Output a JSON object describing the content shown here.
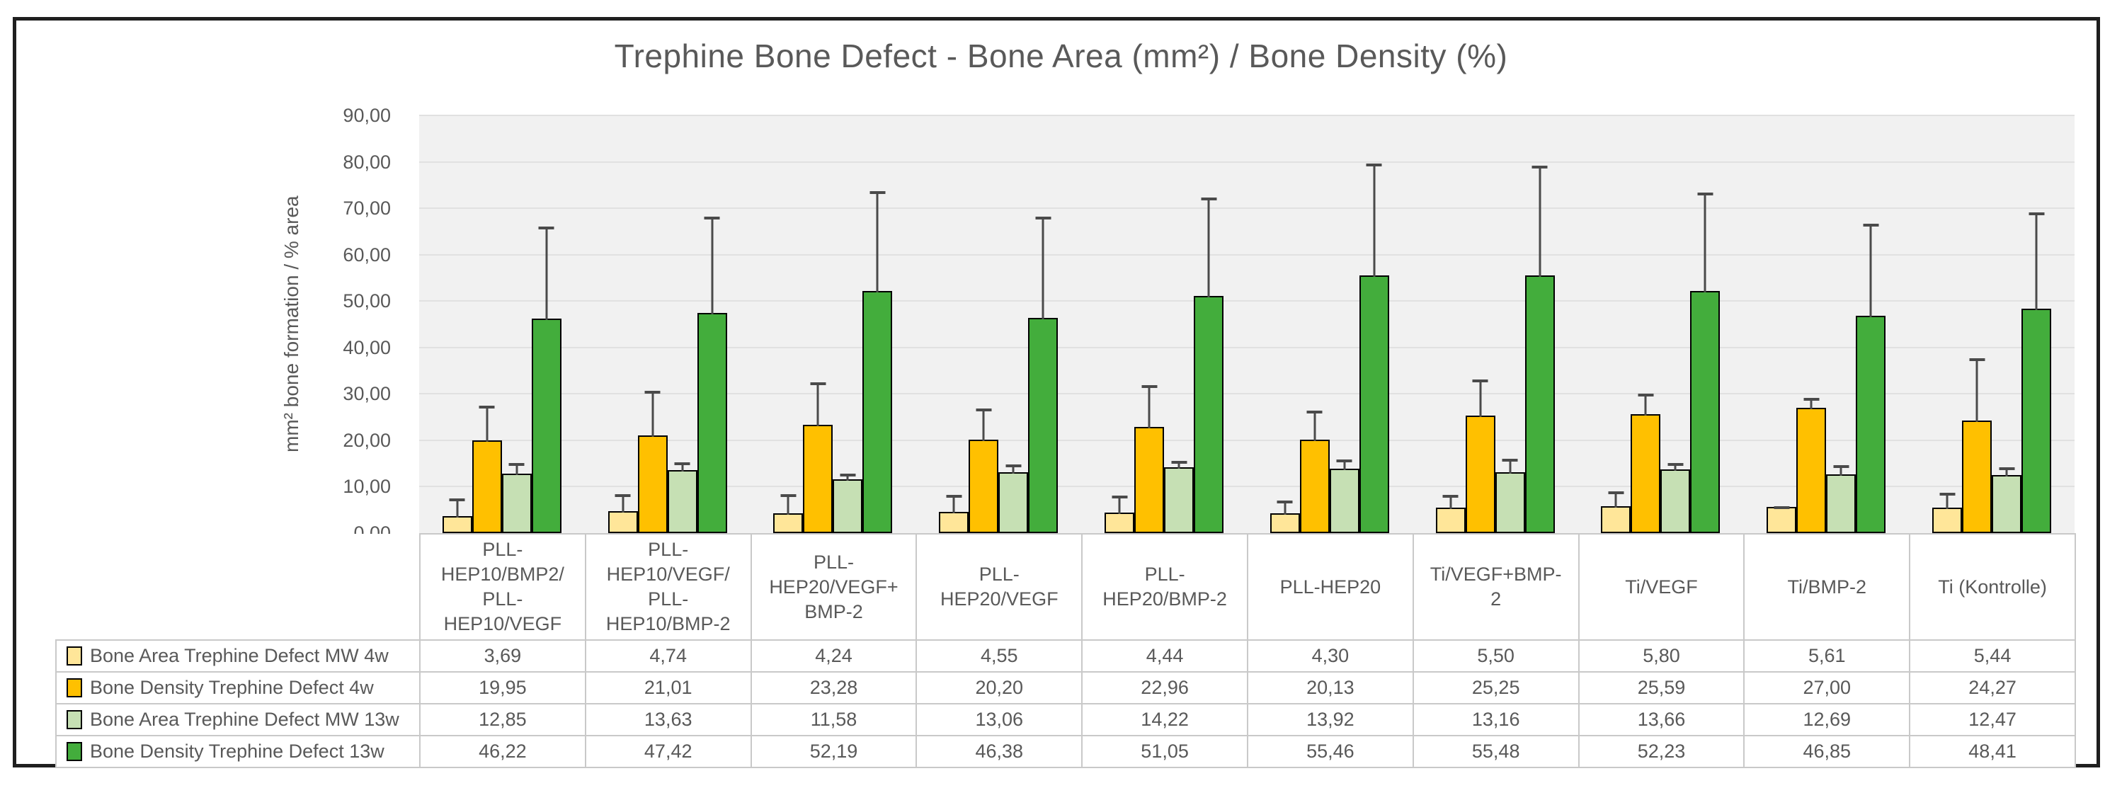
{
  "chart_data": {
    "type": "bar",
    "title": "Trephine Bone Defect - Bone Area (mm²) / Bone Density (%)",
    "ylabel": "mm² bone formation / % area",
    "ylim": [
      0,
      90
    ],
    "ytick_step": 10,
    "ytick_labels": [
      "0,00",
      "10,00",
      "20,00",
      "30,00",
      "40,00",
      "50,00",
      "60,00",
      "70,00",
      "80,00",
      "90,00"
    ],
    "grid": true,
    "legend_position": "table-left",
    "decimal_separator": ",",
    "categories": [
      "PLL-HEP10/BMP2/PLL-HEP10/VEGF",
      "PLL-HEP10/VEGF/PLL-HEP10/BMP-2",
      "PLL-HEP20/VEGF+BMP-2",
      "PLL-HEP20/VEGF",
      "PLL-HEP20/BMP-2",
      "PLL-HEP20",
      "Ti/VEGF+BMP-2",
      "Ti/VEGF",
      "Ti/BMP-2",
      "Ti (Kontrolle)"
    ],
    "series": [
      {
        "name": "Bone Area Trephine Defect MW 4w",
        "color": "#FFE699",
        "values": [
          3.69,
          4.74,
          4.24,
          4.55,
          4.44,
          4.3,
          5.5,
          5.8,
          5.61,
          5.44
        ],
        "labels": [
          "3,69",
          "4,74",
          "4,24",
          "4,55",
          "4,44",
          "4,30",
          "5,50",
          "5,80",
          "5,61",
          "5,44"
        ],
        "errors": [
          4.1,
          4.0,
          4.5,
          4.0,
          4.0,
          3.1,
          3.0,
          3.5,
          0.5,
          3.6
        ]
      },
      {
        "name": "Bone Density Trephine Defect 4w",
        "color": "#FFC000",
        "values": [
          19.95,
          21.01,
          23.28,
          20.2,
          22.96,
          20.13,
          25.25,
          25.59,
          27.0,
          24.27
        ],
        "labels": [
          "19,95",
          "21,01",
          "23,28",
          "20,20",
          "22,96",
          "20,13",
          "25,25",
          "25,59",
          "27,00",
          "24,27"
        ],
        "errors": [
          7.8,
          10.0,
          9.5,
          7.0,
          9.3,
          6.6,
          8.2,
          4.7,
          2.4,
          13.7
        ]
      },
      {
        "name": "Bone Area Trephine Defect MW 13w",
        "color": "#C6E0B4",
        "values": [
          12.85,
          13.63,
          11.58,
          13.06,
          14.22,
          13.92,
          13.16,
          13.66,
          12.69,
          12.47
        ],
        "labels": [
          "12,85",
          "13,63",
          "11,58",
          "13,06",
          "14,22",
          "13,92",
          "13,16",
          "13,66",
          "12,69",
          "12,47"
        ],
        "errors": [
          2.5,
          2.0,
          1.5,
          2.0,
          1.6,
          2.3,
          3.1,
          1.8,
          2.2,
          2.0
        ]
      },
      {
        "name": "Bone Density Trephine Defect 13w",
        "color": "#43AD3C",
        "values": [
          46.22,
          47.42,
          52.19,
          46.38,
          51.05,
          55.46,
          55.48,
          52.23,
          46.85,
          48.41
        ],
        "labels": [
          "46,22",
          "47,42",
          "52,19",
          "46,38",
          "51,05",
          "55,46",
          "55,48",
          "52,23",
          "46,85",
          "48,41"
        ],
        "errors": [
          20.1,
          21.1,
          21.8,
          22.1,
          21.5,
          24.5,
          24.0,
          21.5,
          20.1,
          21.0
        ]
      }
    ],
    "colors": {
      "plot_bg": "#F1F1F1",
      "gridline": "#E1E1E1",
      "axis_text": "#595959",
      "bar_border": "#000000",
      "error_bar": "#4A4A4A",
      "table_border": "#C9C9C9",
      "frame_border": "#1F1F1F",
      "swatch_border": "#000000"
    }
  }
}
